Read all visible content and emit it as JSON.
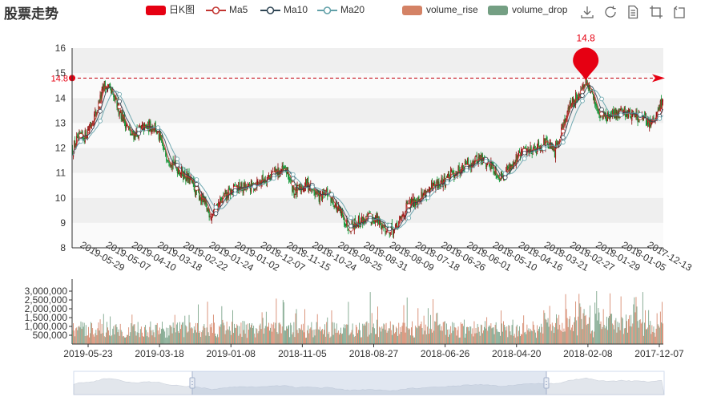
{
  "title": "股票走势",
  "legend": {
    "items": [
      {
        "key": "kline",
        "label": "日K图",
        "type": "rect",
        "color": "#e60012"
      },
      {
        "key": "ma5",
        "label": "Ma5",
        "type": "line",
        "color": "#c23531"
      },
      {
        "key": "ma10",
        "label": "Ma10",
        "type": "line",
        "color": "#2f4554"
      },
      {
        "key": "ma20",
        "label": "Ma20",
        "type": "line",
        "color": "#61a0a8"
      },
      {
        "key": "vrise",
        "label": "volume_rise",
        "type": "rect",
        "color": "#d48265"
      },
      {
        "key": "vdrop",
        "label": "volume_drop",
        "type": "rect",
        "color": "#749f83"
      }
    ]
  },
  "toolbox": [
    "download-icon",
    "refresh-icon",
    "data-view-icon",
    "zoom-icon",
    "zoom-reset-icon"
  ],
  "chart_data": {
    "type": "candlestick",
    "x_dates": [
      "2019-05-29",
      "2019-05-07",
      "2019-04-10",
      "2019-03-18",
      "2019-02-22",
      "2019-01-24",
      "2019-01-02",
      "2018-12-07",
      "2018-11-15",
      "2018-10-24",
      "2018-09-25",
      "2018-08-31",
      "2018-08-09",
      "2018-07-18",
      "2018-06-26",
      "2018-06-01",
      "2018-05-10",
      "2018-04-16",
      "2018-03-21",
      "2018-02-27",
      "2018-01-29",
      "2018-01-05",
      "2017-12-13"
    ],
    "volume_x_dates": [
      "2019-05-23",
      "2019-03-18",
      "2019-01-08",
      "2018-11-05",
      "2018-08-27",
      "2018-06-26",
      "2018-04-20",
      "2018-02-08",
      "2017-12-07"
    ],
    "price_axis": {
      "min": 8,
      "max": 16,
      "ticks": [
        8,
        9,
        10,
        11,
        12,
        13,
        14,
        15,
        16
      ]
    },
    "volume_axis": {
      "max": 3500000,
      "ticks": [
        500000,
        1000000,
        1500000,
        2000000,
        2500000,
        3000000
      ],
      "tick_labels": [
        "500,000",
        "1,000,000",
        "1,500,000",
        "2,000,000",
        "2,500,000",
        "3,000,000"
      ]
    },
    "mark_line": {
      "value": 14.8,
      "label": "14.8"
    },
    "mark_point": {
      "value": 14.8,
      "label": "14.8",
      "date": "2018-01-29"
    },
    "anchors": [
      {
        "t": 0,
        "v": 11.9
      },
      {
        "t": 5,
        "v": 12.3
      },
      {
        "t": 15,
        "v": 12.5
      },
      {
        "t": 28,
        "v": 13.4
      },
      {
        "t": 38,
        "v": 14.5
      },
      {
        "t": 44,
        "v": 14.3
      },
      {
        "t": 55,
        "v": 13.6
      },
      {
        "t": 70,
        "v": 12.5
      },
      {
        "t": 85,
        "v": 12.8
      },
      {
        "t": 98,
        "v": 12.9
      },
      {
        "t": 110,
        "v": 11.8
      },
      {
        "t": 125,
        "v": 11.2
      },
      {
        "t": 140,
        "v": 10.7
      },
      {
        "t": 155,
        "v": 9.9
      },
      {
        "t": 165,
        "v": 9.3
      },
      {
        "t": 180,
        "v": 10.0
      },
      {
        "t": 195,
        "v": 10.4
      },
      {
        "t": 210,
        "v": 10.4
      },
      {
        "t": 225,
        "v": 10.7
      },
      {
        "t": 240,
        "v": 11.0
      },
      {
        "t": 255,
        "v": 11.1
      },
      {
        "t": 265,
        "v": 10.2
      },
      {
        "t": 280,
        "v": 10.6
      },
      {
        "t": 295,
        "v": 10.0
      },
      {
        "t": 305,
        "v": 10.2
      },
      {
        "t": 315,
        "v": 9.6
      },
      {
        "t": 328,
        "v": 8.9
      },
      {
        "t": 345,
        "v": 9.1
      },
      {
        "t": 360,
        "v": 9.2
      },
      {
        "t": 372,
        "v": 8.8
      },
      {
        "t": 385,
        "v": 8.7
      },
      {
        "t": 398,
        "v": 9.6
      },
      {
        "t": 412,
        "v": 10.0
      },
      {
        "t": 425,
        "v": 10.3
      },
      {
        "t": 440,
        "v": 10.6
      },
      {
        "t": 455,
        "v": 11.0
      },
      {
        "t": 470,
        "v": 11.3
      },
      {
        "t": 485,
        "v": 11.6
      },
      {
        "t": 500,
        "v": 11.3
      },
      {
        "t": 510,
        "v": 10.8
      },
      {
        "t": 520,
        "v": 11.2
      },
      {
        "t": 535,
        "v": 11.8
      },
      {
        "t": 550,
        "v": 12.0
      },
      {
        "t": 565,
        "v": 12.2
      },
      {
        "t": 575,
        "v": 11.8
      },
      {
        "t": 585,
        "v": 13.0
      },
      {
        "t": 595,
        "v": 13.8
      },
      {
        "t": 605,
        "v": 14.2
      },
      {
        "t": 612,
        "v": 14.6
      },
      {
        "t": 620,
        "v": 14.1
      },
      {
        "t": 628,
        "v": 13.4
      },
      {
        "t": 640,
        "v": 13.2
      },
      {
        "t": 655,
        "v": 13.5
      },
      {
        "t": 670,
        "v": 13.3
      },
      {
        "t": 682,
        "v": 13.1
      },
      {
        "t": 692,
        "v": 13.0
      },
      {
        "t": 700,
        "v": 13.5
      },
      {
        "t": 703,
        "v": 14.0
      }
    ]
  }
}
